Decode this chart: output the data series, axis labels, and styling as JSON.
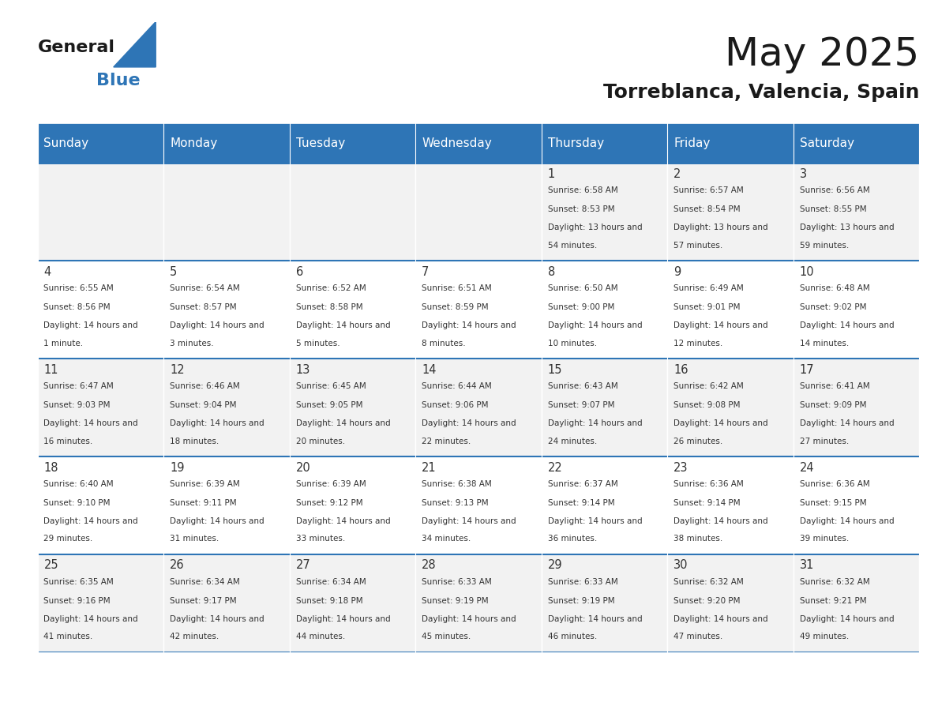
{
  "title": "May 2025",
  "subtitle": "Torreblanca, Valencia, Spain",
  "header_bg": "#2E75B6",
  "header_text_color": "#FFFFFF",
  "cell_bg_even": "#F2F2F2",
  "cell_bg_odd": "#FFFFFF",
  "day_headers": [
    "Sunday",
    "Monday",
    "Tuesday",
    "Wednesday",
    "Thursday",
    "Friday",
    "Saturday"
  ],
  "days": [
    {
      "day": 1,
      "col": 4,
      "row": 0,
      "sunrise": "6:58 AM",
      "sunset": "8:53 PM",
      "daylight": "13 hours and 54 minutes."
    },
    {
      "day": 2,
      "col": 5,
      "row": 0,
      "sunrise": "6:57 AM",
      "sunset": "8:54 PM",
      "daylight": "13 hours and 57 minutes."
    },
    {
      "day": 3,
      "col": 6,
      "row": 0,
      "sunrise": "6:56 AM",
      "sunset": "8:55 PM",
      "daylight": "13 hours and 59 minutes."
    },
    {
      "day": 4,
      "col": 0,
      "row": 1,
      "sunrise": "6:55 AM",
      "sunset": "8:56 PM",
      "daylight": "14 hours and 1 minute."
    },
    {
      "day": 5,
      "col": 1,
      "row": 1,
      "sunrise": "6:54 AM",
      "sunset": "8:57 PM",
      "daylight": "14 hours and 3 minutes."
    },
    {
      "day": 6,
      "col": 2,
      "row": 1,
      "sunrise": "6:52 AM",
      "sunset": "8:58 PM",
      "daylight": "14 hours and 5 minutes."
    },
    {
      "day": 7,
      "col": 3,
      "row": 1,
      "sunrise": "6:51 AM",
      "sunset": "8:59 PM",
      "daylight": "14 hours and 8 minutes."
    },
    {
      "day": 8,
      "col": 4,
      "row": 1,
      "sunrise": "6:50 AM",
      "sunset": "9:00 PM",
      "daylight": "14 hours and 10 minutes."
    },
    {
      "day": 9,
      "col": 5,
      "row": 1,
      "sunrise": "6:49 AM",
      "sunset": "9:01 PM",
      "daylight": "14 hours and 12 minutes."
    },
    {
      "day": 10,
      "col": 6,
      "row": 1,
      "sunrise": "6:48 AM",
      "sunset": "9:02 PM",
      "daylight": "14 hours and 14 minutes."
    },
    {
      "day": 11,
      "col": 0,
      "row": 2,
      "sunrise": "6:47 AM",
      "sunset": "9:03 PM",
      "daylight": "14 hours and 16 minutes."
    },
    {
      "day": 12,
      "col": 1,
      "row": 2,
      "sunrise": "6:46 AM",
      "sunset": "9:04 PM",
      "daylight": "14 hours and 18 minutes."
    },
    {
      "day": 13,
      "col": 2,
      "row": 2,
      "sunrise": "6:45 AM",
      "sunset": "9:05 PM",
      "daylight": "14 hours and 20 minutes."
    },
    {
      "day": 14,
      "col": 3,
      "row": 2,
      "sunrise": "6:44 AM",
      "sunset": "9:06 PM",
      "daylight": "14 hours and 22 minutes."
    },
    {
      "day": 15,
      "col": 4,
      "row": 2,
      "sunrise": "6:43 AM",
      "sunset": "9:07 PM",
      "daylight": "14 hours and 24 minutes."
    },
    {
      "day": 16,
      "col": 5,
      "row": 2,
      "sunrise": "6:42 AM",
      "sunset": "9:08 PM",
      "daylight": "14 hours and 26 minutes."
    },
    {
      "day": 17,
      "col": 6,
      "row": 2,
      "sunrise": "6:41 AM",
      "sunset": "9:09 PM",
      "daylight": "14 hours and 27 minutes."
    },
    {
      "day": 18,
      "col": 0,
      "row": 3,
      "sunrise": "6:40 AM",
      "sunset": "9:10 PM",
      "daylight": "14 hours and 29 minutes."
    },
    {
      "day": 19,
      "col": 1,
      "row": 3,
      "sunrise": "6:39 AM",
      "sunset": "9:11 PM",
      "daylight": "14 hours and 31 minutes."
    },
    {
      "day": 20,
      "col": 2,
      "row": 3,
      "sunrise": "6:39 AM",
      "sunset": "9:12 PM",
      "daylight": "14 hours and 33 minutes."
    },
    {
      "day": 21,
      "col": 3,
      "row": 3,
      "sunrise": "6:38 AM",
      "sunset": "9:13 PM",
      "daylight": "14 hours and 34 minutes."
    },
    {
      "day": 22,
      "col": 4,
      "row": 3,
      "sunrise": "6:37 AM",
      "sunset": "9:14 PM",
      "daylight": "14 hours and 36 minutes."
    },
    {
      "day": 23,
      "col": 5,
      "row": 3,
      "sunrise": "6:36 AM",
      "sunset": "9:14 PM",
      "daylight": "14 hours and 38 minutes."
    },
    {
      "day": 24,
      "col": 6,
      "row": 3,
      "sunrise": "6:36 AM",
      "sunset": "9:15 PM",
      "daylight": "14 hours and 39 minutes."
    },
    {
      "day": 25,
      "col": 0,
      "row": 4,
      "sunrise": "6:35 AM",
      "sunset": "9:16 PM",
      "daylight": "14 hours and 41 minutes."
    },
    {
      "day": 26,
      "col": 1,
      "row": 4,
      "sunrise": "6:34 AM",
      "sunset": "9:17 PM",
      "daylight": "14 hours and 42 minutes."
    },
    {
      "day": 27,
      "col": 2,
      "row": 4,
      "sunrise": "6:34 AM",
      "sunset": "9:18 PM",
      "daylight": "14 hours and 44 minutes."
    },
    {
      "day": 28,
      "col": 3,
      "row": 4,
      "sunrise": "6:33 AM",
      "sunset": "9:19 PM",
      "daylight": "14 hours and 45 minutes."
    },
    {
      "day": 29,
      "col": 4,
      "row": 4,
      "sunrise": "6:33 AM",
      "sunset": "9:19 PM",
      "daylight": "14 hours and 46 minutes."
    },
    {
      "day": 30,
      "col": 5,
      "row": 4,
      "sunrise": "6:32 AM",
      "sunset": "9:20 PM",
      "daylight": "14 hours and 47 minutes."
    },
    {
      "day": 31,
      "col": 6,
      "row": 4,
      "sunrise": "6:32 AM",
      "sunset": "9:21 PM",
      "daylight": "14 hours and 49 minutes."
    }
  ],
  "num_rows": 5,
  "num_cols": 7,
  "logo_text_general": "General",
  "logo_text_blue": "Blue",
  "logo_color_general": "#1a1a1a",
  "logo_color_blue": "#2E75B6",
  "title_color": "#1a1a1a",
  "subtitle_color": "#1a1a1a",
  "border_color": "#2E75B6",
  "cell_text_color": "#333333",
  "day_num_color": "#333333"
}
